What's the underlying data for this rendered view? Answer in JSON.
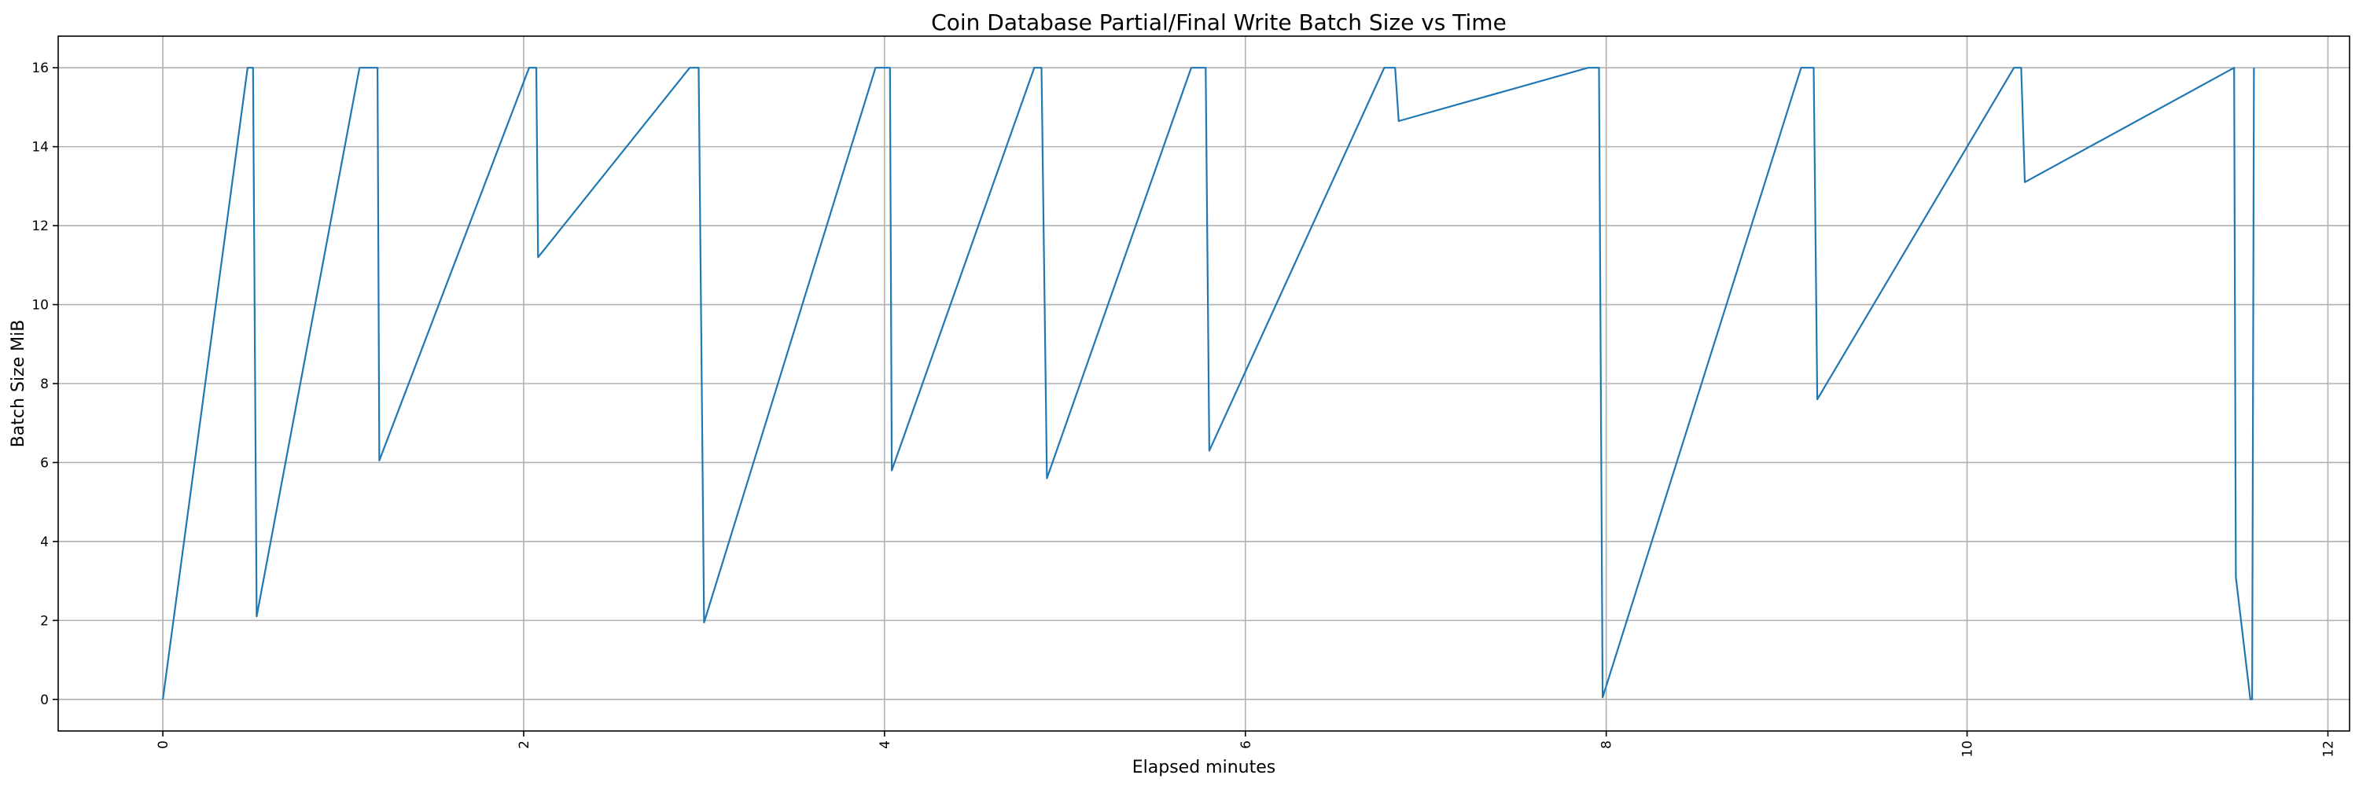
{
  "chart_data": {
    "type": "line",
    "title": "Coin Database Partial/Final Write Batch Size vs Time",
    "xlabel": "Elapsed minutes",
    "ylabel": "Batch Size MiB",
    "xlim": [
      -0.58,
      12.12
    ],
    "ylim": [
      -0.8,
      16.8
    ],
    "xticks": [
      0,
      2,
      4,
      6,
      8,
      10,
      12
    ],
    "yticks": [
      0,
      2,
      4,
      6,
      8,
      10,
      12,
      14,
      16
    ],
    "x_tick_rotation": 90,
    "grid": true,
    "series_color": "#1f77b4",
    "x": [
      0,
      0.47,
      0.49,
      0.5,
      0.52,
      1.09,
      1.19,
      1.2,
      2.03,
      2.07,
      2.08,
      2.92,
      2.97,
      3.0,
      3.95,
      4.03,
      4.04,
      4.83,
      4.87,
      4.9,
      5.7,
      5.78,
      5.8,
      6.77,
      6.83,
      6.85,
      7.9,
      7.96,
      7.98,
      9.08,
      9.15,
      9.17,
      10.26,
      10.3,
      10.32,
      11.48,
      11.49,
      11.57,
      11.58,
      11.59
    ],
    "y": [
      0,
      16,
      16,
      16,
      2.1,
      16,
      16,
      6.05,
      16,
      16,
      11.2,
      16,
      16,
      1.95,
      16,
      16,
      5.8,
      16,
      16,
      5.6,
      16,
      16,
      6.3,
      16,
      16,
      14.65,
      16,
      16,
      0.05,
      16,
      16,
      7.6,
      16,
      16,
      13.1,
      16,
      3.1,
      0,
      0,
      16
    ]
  }
}
